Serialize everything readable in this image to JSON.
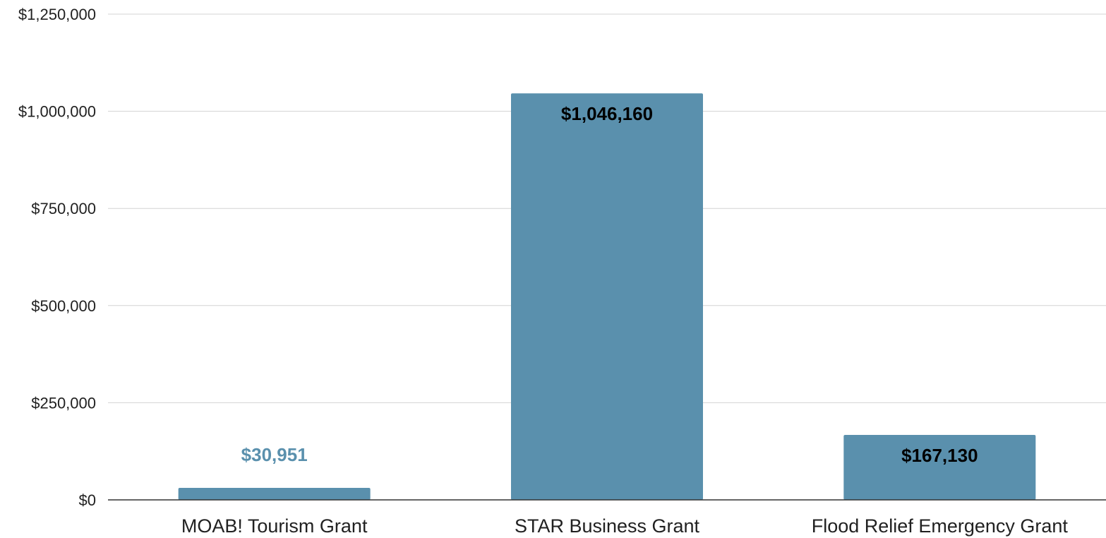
{
  "chart_data": {
    "type": "bar",
    "title": "",
    "xlabel": "",
    "ylabel": "",
    "categories": [
      "MOAB! Tourism Grant",
      "STAR Business Grant",
      "Flood Relief Emergency Grant"
    ],
    "values": [
      30951,
      1046160,
      167130
    ],
    "data_labels": [
      "$30,951",
      "$1,046,160",
      "$167,130"
    ],
    "ylim": [
      0,
      1250000
    ],
    "yticks": [
      0,
      250000,
      500000,
      750000,
      1000000,
      1250000
    ],
    "ytick_labels": [
      "$0",
      "$250,000",
      "$500,000",
      "$750,000",
      "$1,000,000",
      "$1,250,000"
    ],
    "grid": true,
    "legend": "none",
    "colors": {
      "bar": "#5a90ad",
      "label_inside": "#000000",
      "label_outside": "#5a90ad"
    }
  }
}
